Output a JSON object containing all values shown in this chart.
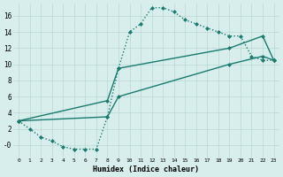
{
  "xlabel": "Humidex (Indice chaleur)",
  "ylabel": "",
  "bg_color": "#d7eeec",
  "grid_color": "#b8d8d4",
  "line_color": "#1a7a6e",
  "xlim": [
    -0.5,
    23.5
  ],
  "ylim": [
    -1.5,
    17.5
  ],
  "xticks": [
    0,
    1,
    2,
    3,
    4,
    5,
    6,
    7,
    8,
    9,
    10,
    11,
    12,
    13,
    14,
    15,
    16,
    17,
    18,
    19,
    20,
    21,
    22,
    23
  ],
  "yticks": [
    0,
    2,
    4,
    6,
    8,
    10,
    12,
    14,
    16
  ],
  "line1_x": [
    0,
    1,
    2,
    3,
    4,
    5,
    6,
    7,
    8,
    9,
    10,
    11,
    12,
    13,
    14,
    15,
    16,
    17,
    18,
    19,
    20,
    21,
    22,
    23
  ],
  "line1_y": [
    3,
    2,
    1,
    0.5,
    -0.2,
    -0.5,
    -0.5,
    -0.5,
    3.5,
    9.5,
    14,
    15,
    17,
    17,
    16.5,
    15.5,
    15,
    14.5,
    14,
    13.5,
    13.5,
    11,
    10.5,
    10.5
  ],
  "line2_x": [
    0,
    8,
    9,
    19,
    22,
    23
  ],
  "line2_y": [
    3,
    5.5,
    9.5,
    12,
    13.5,
    10.5
  ],
  "line3_x": [
    0,
    8,
    9,
    19,
    22,
    23
  ],
  "line3_y": [
    3,
    3.5,
    6,
    10,
    11,
    10.5
  ]
}
